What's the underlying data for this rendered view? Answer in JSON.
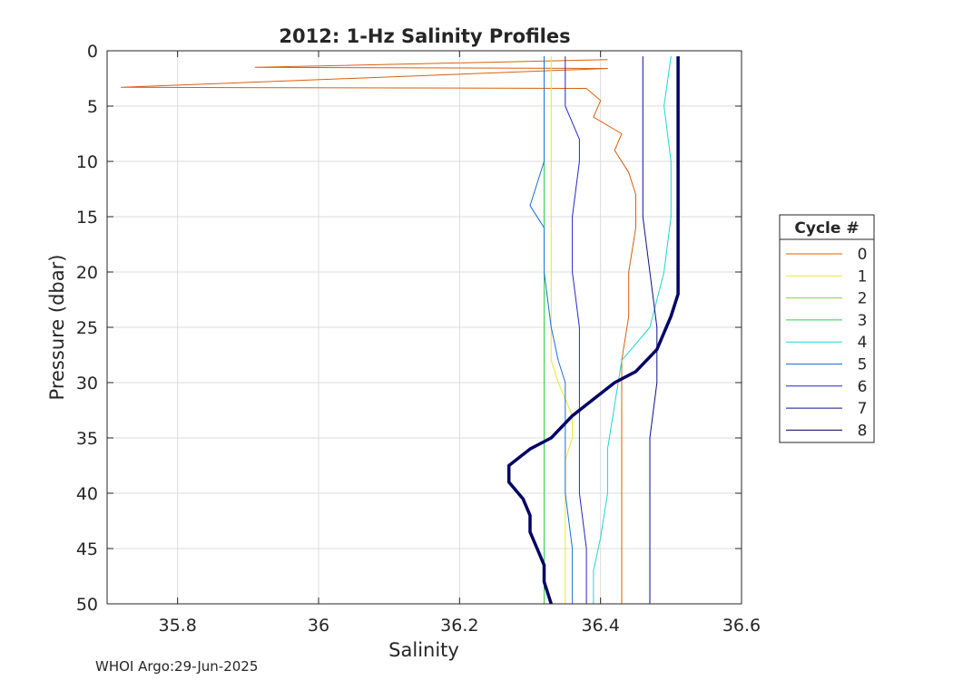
{
  "chart_data": {
    "type": "line",
    "title": "2012: 1-Hz Salinity Profiles",
    "xlabel": "Salinity",
    "ylabel": "Pressure (dbar)",
    "xlim": [
      35.7,
      36.6
    ],
    "ylim": [
      0,
      50
    ],
    "y_reversed": true,
    "grid": true,
    "x_ticks": [
      35.8,
      36.0,
      36.2,
      36.4,
      36.6
    ],
    "x_tick_labels": [
      "35.8",
      "36",
      "36.2",
      "36.4",
      "36.6"
    ],
    "y_ticks": [
      0,
      5,
      10,
      15,
      20,
      25,
      30,
      35,
      40,
      45,
      50
    ],
    "y_tick_labels": [
      "0",
      "5",
      "10",
      "15",
      "20",
      "25",
      "30",
      "35",
      "40",
      "45",
      "50"
    ],
    "legend": {
      "title": "Cycle #",
      "placement": "outside-right"
    },
    "series": [
      {
        "name": "0",
        "color": "#d95f0e",
        "width": 1,
        "points": [
          [
            36.41,
            0.8
          ],
          [
            35.91,
            1.5
          ],
          [
            36.41,
            1.6
          ],
          [
            35.72,
            3.3
          ],
          [
            36.38,
            3.4
          ],
          [
            36.4,
            4.5
          ],
          [
            36.39,
            6.0
          ],
          [
            36.43,
            7.5
          ],
          [
            36.42,
            9.0
          ],
          [
            36.44,
            11.0
          ],
          [
            36.45,
            13.0
          ],
          [
            36.45,
            16.0
          ],
          [
            36.44,
            20.0
          ],
          [
            36.44,
            24.0
          ],
          [
            36.43,
            28.0
          ],
          [
            36.43,
            32.0
          ],
          [
            36.43,
            36.0
          ],
          [
            36.43,
            40.0
          ],
          [
            36.43,
            43.0
          ],
          [
            36.43,
            46.0
          ],
          [
            36.43,
            50.0
          ]
        ]
      },
      {
        "name": "1",
        "color": "#e8e82a",
        "width": 1,
        "points": [
          [
            36.33,
            0.5
          ],
          [
            36.33,
            10.0
          ],
          [
            36.33,
            20.0
          ],
          [
            36.33,
            28.0
          ],
          [
            36.34,
            30.0
          ],
          [
            36.36,
            33.0
          ],
          [
            36.36,
            35.0
          ],
          [
            36.35,
            37.0
          ],
          [
            36.35,
            40.0
          ],
          [
            36.35,
            43.0
          ],
          [
            36.35,
            46.0
          ],
          [
            36.35,
            50.0
          ]
        ]
      },
      {
        "name": "2",
        "color": "#8fcf3f",
        "width": 1,
        "points": [
          [
            36.32,
            0.5
          ],
          [
            36.32,
            10.0
          ],
          [
            36.32,
            20.0
          ],
          [
            36.32,
            30.0
          ],
          [
            36.32,
            40.0
          ],
          [
            36.32,
            50.0
          ]
        ]
      },
      {
        "name": "3",
        "color": "#2ecc4e",
        "width": 1,
        "points": [
          [
            36.32,
            0.5
          ],
          [
            36.32,
            10.0
          ],
          [
            36.32,
            20.0
          ],
          [
            36.32,
            30.0
          ],
          [
            36.32,
            40.0
          ],
          [
            36.32,
            50.0
          ]
        ]
      },
      {
        "name": "4",
        "color": "#1fd6d0",
        "width": 1,
        "points": [
          [
            36.5,
            0.5
          ],
          [
            36.49,
            5.0
          ],
          [
            36.5,
            10.0
          ],
          [
            36.5,
            15.0
          ],
          [
            36.49,
            20.0
          ],
          [
            36.47,
            25.0
          ],
          [
            36.43,
            28.0
          ],
          [
            36.42,
            32.0
          ],
          [
            36.41,
            36.0
          ],
          [
            36.41,
            40.0
          ],
          [
            36.4,
            44.0
          ],
          [
            36.39,
            47.0
          ],
          [
            36.39,
            50.0
          ]
        ]
      },
      {
        "name": "5",
        "color": "#1e6fd6",
        "width": 1,
        "points": [
          [
            36.32,
            0.5
          ],
          [
            36.32,
            10.0
          ],
          [
            36.3,
            14.0
          ],
          [
            36.32,
            16.0
          ],
          [
            36.32,
            20.0
          ],
          [
            36.33,
            25.0
          ],
          [
            36.34,
            28.0
          ],
          [
            36.35,
            30.0
          ],
          [
            36.35,
            35.0
          ],
          [
            36.35,
            40.0
          ],
          [
            36.36,
            45.0
          ],
          [
            36.36,
            50.0
          ]
        ]
      },
      {
        "name": "6",
        "color": "#2727c8",
        "width": 1,
        "points": [
          [
            36.35,
            0.5
          ],
          [
            36.35,
            5.0
          ],
          [
            36.37,
            8.0
          ],
          [
            36.37,
            10.0
          ],
          [
            36.36,
            15.0
          ],
          [
            36.36,
            20.0
          ],
          [
            36.37,
            25.0
          ],
          [
            36.37,
            30.0
          ],
          [
            36.37,
            35.0
          ],
          [
            36.37,
            40.0
          ],
          [
            36.38,
            45.0
          ],
          [
            36.38,
            50.0
          ]
        ]
      },
      {
        "name": "7",
        "color": "#11118f",
        "width": 1,
        "points": [
          [
            36.46,
            0.5
          ],
          [
            36.46,
            5.0
          ],
          [
            36.46,
            10.0
          ],
          [
            36.46,
            15.0
          ],
          [
            36.47,
            20.0
          ],
          [
            36.48,
            25.0
          ],
          [
            36.48,
            30.0
          ],
          [
            36.47,
            35.0
          ],
          [
            36.47,
            40.0
          ],
          [
            36.47,
            45.0
          ],
          [
            36.47,
            50.0
          ]
        ]
      },
      {
        "name": "8",
        "color": "#000066",
        "width": 3.5,
        "points": [
          [
            36.51,
            0.5
          ],
          [
            36.51,
            10.0
          ],
          [
            36.51,
            20.0
          ],
          [
            36.51,
            22.0
          ],
          [
            36.5,
            24.0
          ],
          [
            36.48,
            27.0
          ],
          [
            36.45,
            29.0
          ],
          [
            36.42,
            30.0
          ],
          [
            36.39,
            31.5
          ],
          [
            36.36,
            33.0
          ],
          [
            36.33,
            35.0
          ],
          [
            36.3,
            36.0
          ],
          [
            36.27,
            37.5
          ],
          [
            36.27,
            39.0
          ],
          [
            36.29,
            40.5
          ],
          [
            36.3,
            42.0
          ],
          [
            36.3,
            43.5
          ],
          [
            36.31,
            45.0
          ],
          [
            36.32,
            46.5
          ],
          [
            36.32,
            48.0
          ],
          [
            36.33,
            50.0
          ]
        ]
      }
    ]
  },
  "footer": {
    "note": "WHOI Argo:29-Jun-2025"
  }
}
